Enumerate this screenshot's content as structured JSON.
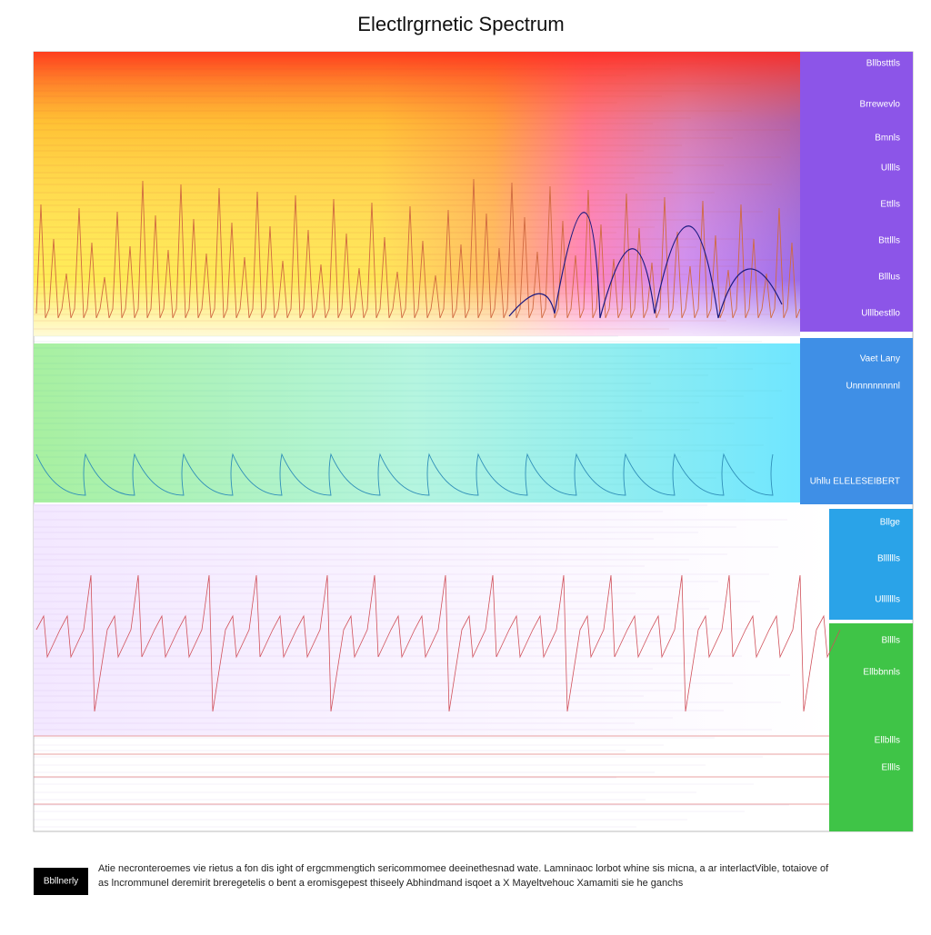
{
  "header": {
    "title": "Electlrgrnetic Spectrum"
  },
  "side_labels": [
    "Bllbstttls",
    "Brrewevlo",
    "Bmnls",
    "Ulllls",
    "Ettlls",
    "Bttllls",
    "Blllus",
    "Ulllbestllo",
    "Vaet Lany",
    "Unnnnnnnnnl",
    "Uhllu ELELESEIBERT",
    "Bllge",
    "Blllllls",
    "Ullllllls",
    "Blllls",
    "Ellbbnnls",
    "Ellbllls",
    "Elllls"
  ],
  "footer": {
    "badge": "Bbllnerly",
    "caption": [
      "Atie necronteroemes vie rietus a fon dis ight of ergcmmengtich sericommomee deeinethesnad wate. Lamninaoc lorbot whine sis micna, a ar interlactVible, totaiove of",
      "as lncrommunel deremirit breregetelis o bent a eromisgepest thiseely Abhindmand isqoet a X Mayeltvehouc Xamamiti sie he ganchs"
    ]
  }
}
